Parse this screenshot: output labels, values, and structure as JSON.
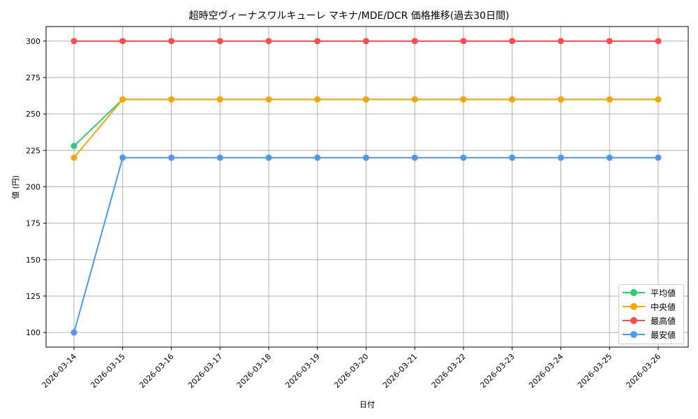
{
  "chart_data": {
    "type": "line",
    "title": "超時空ヴィーナスワルキューレ マキナ/MDE/DCR 価格推移(過去30日間)",
    "xlabel": "日付",
    "ylabel": "値 (円)",
    "x": [
      "2026-03-14",
      "2026-03-15",
      "2026-03-16",
      "2026-03-17",
      "2026-03-18",
      "2026-03-19",
      "2026-03-20",
      "2026-03-21",
      "2026-03-22",
      "2026-03-23",
      "2026-03-24",
      "2026-03-25",
      "2026-03-26"
    ],
    "series": [
      {
        "name": "平均値",
        "color": "#2ecc71",
        "values": [
          228,
          260,
          260,
          260,
          260,
          260,
          260,
          260,
          260,
          260,
          260,
          260,
          260
        ]
      },
      {
        "name": "中央値",
        "color": "#ffa500",
        "values": [
          220,
          260,
          260,
          260,
          260,
          260,
          260,
          260,
          260,
          260,
          260,
          260,
          260
        ]
      },
      {
        "name": "最高値",
        "color": "#ff4d4d",
        "values": [
          300,
          300,
          300,
          300,
          300,
          300,
          300,
          300,
          300,
          300,
          300,
          300,
          300
        ]
      },
      {
        "name": "最安値",
        "color": "#4a9af5",
        "values": [
          100,
          220,
          220,
          220,
          220,
          220,
          220,
          220,
          220,
          220,
          220,
          220,
          220
        ]
      }
    ],
    "yticks": [
      100,
      125,
      150,
      175,
      200,
      225,
      250,
      275,
      300
    ],
    "ylim": [
      90,
      310
    ],
    "grid": true,
    "legend_position": "lower right"
  }
}
